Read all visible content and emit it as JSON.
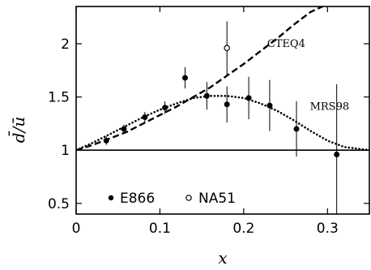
{
  "chart_data": {
    "type": "scatter",
    "xlabel": "x",
    "ylabel": "d̄/ū",
    "xlim": [
      0,
      0.35
    ],
    "ylim": [
      0.4,
      2.35
    ],
    "xticks": [
      "0",
      "0.1",
      "0.2",
      "0.3"
    ],
    "xtick_values": [
      0,
      0.1,
      0.2,
      0.3
    ],
    "yticks": [
      "0.5",
      "1",
      "1.5",
      "2"
    ],
    "ytick_values": [
      0.5,
      1,
      1.5,
      2
    ],
    "grid": false,
    "legend_position": "lower-left",
    "reference_line": {
      "y": 1
    },
    "series": [
      {
        "name": "E866",
        "kind": "points",
        "marker": "filled-circle",
        "points": [
          {
            "x": 0.036,
            "y": 1.09,
            "err": 0.04
          },
          {
            "x": 0.057,
            "y": 1.2,
            "err": 0.04
          },
          {
            "x": 0.082,
            "y": 1.31,
            "err": 0.05
          },
          {
            "x": 0.106,
            "y": 1.4,
            "err": 0.06
          },
          {
            "x": 0.13,
            "y": 1.68,
            "err": 0.1
          },
          {
            "x": 0.156,
            "y": 1.51,
            "err": 0.13
          },
          {
            "x": 0.18,
            "y": 1.43,
            "err": 0.17
          },
          {
            "x": 0.206,
            "y": 1.49,
            "err": 0.2
          },
          {
            "x": 0.231,
            "y": 1.42,
            "err": 0.24
          },
          {
            "x": 0.263,
            "y": 1.2,
            "err": 0.26
          },
          {
            "x": 0.311,
            "y": 0.96,
            "err": 0.66
          }
        ]
      },
      {
        "name": "NA51",
        "kind": "points",
        "marker": "open-circle",
        "points": [
          {
            "x": 0.18,
            "y": 1.96,
            "err": 0.25
          }
        ]
      },
      {
        "name": "CTEQ4",
        "kind": "line",
        "style": "dashed",
        "x": [
          0.0,
          0.02,
          0.04,
          0.06,
          0.08,
          0.1,
          0.12,
          0.14,
          0.16,
          0.18,
          0.2,
          0.22,
          0.24,
          0.26,
          0.28,
          0.294
        ],
        "y": [
          1.0,
          1.05,
          1.11,
          1.17,
          1.25,
          1.33,
          1.41,
          1.5,
          1.59,
          1.7,
          1.81,
          1.93,
          2.05,
          2.18,
          2.3,
          2.35
        ]
      },
      {
        "name": "MRS98",
        "kind": "line",
        "style": "dotted",
        "x": [
          0.0,
          0.02,
          0.04,
          0.06,
          0.08,
          0.1,
          0.12,
          0.14,
          0.16,
          0.18,
          0.2,
          0.22,
          0.24,
          0.26,
          0.28,
          0.3,
          0.32,
          0.35
        ],
        "y": [
          1.0,
          1.07,
          1.15,
          1.23,
          1.31,
          1.38,
          1.44,
          1.49,
          1.51,
          1.51,
          1.49,
          1.44,
          1.37,
          1.28,
          1.18,
          1.09,
          1.03,
          1.0
        ]
      }
    ],
    "annotations": [
      {
        "text": "CTEQ4",
        "x": 0.228,
        "y": 1.97
      },
      {
        "text": "MRS98",
        "x": 0.279,
        "y": 1.38
      }
    ],
    "legend": [
      {
        "label": "E866",
        "marker": "filled-circle"
      },
      {
        "label": "NA51",
        "marker": "open-circle"
      }
    ]
  }
}
